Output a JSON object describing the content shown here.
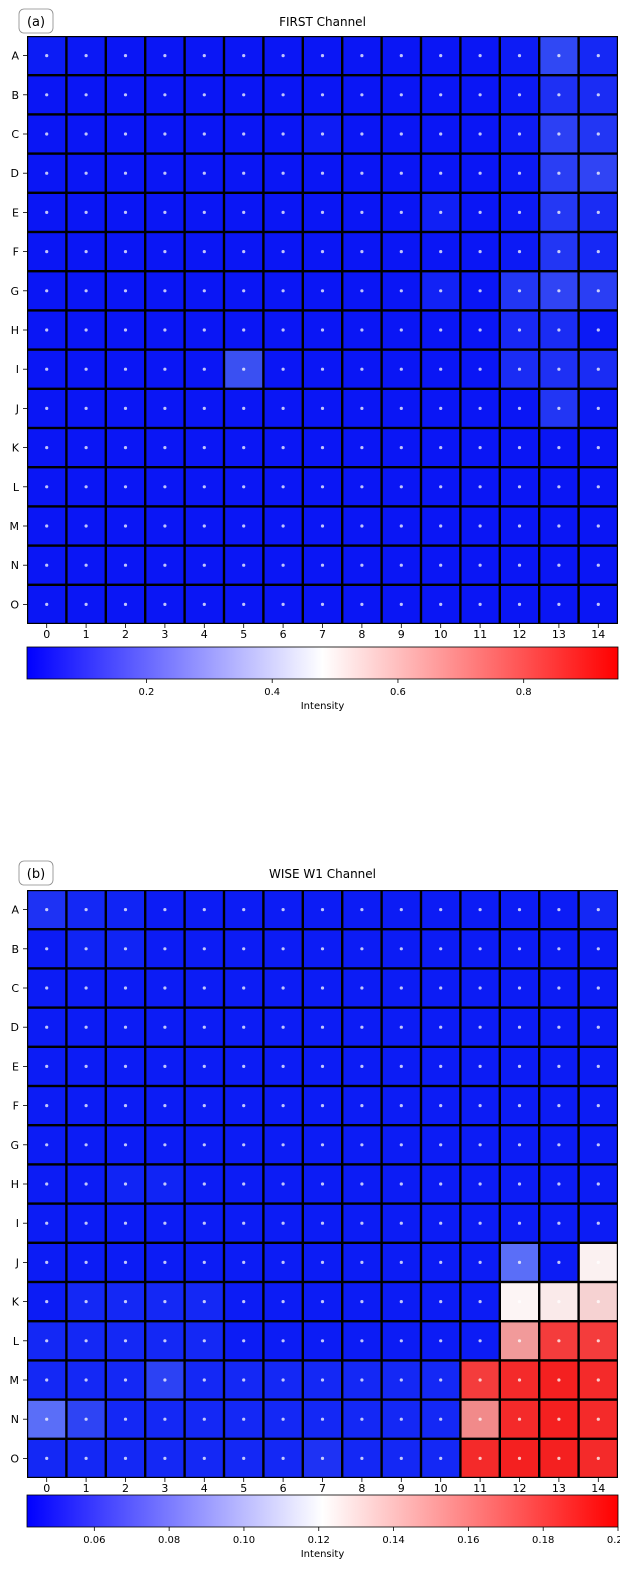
{
  "chart_data": [
    {
      "type": "heatmap",
      "panel_label": "(a)",
      "title": "FIRST Channel",
      "row_labels": [
        "A",
        "B",
        "C",
        "D",
        "E",
        "F",
        "G",
        "H",
        "I",
        "J",
        "K",
        "L",
        "M",
        "N",
        "O"
      ],
      "col_labels": [
        "0",
        "1",
        "2",
        "3",
        "4",
        "5",
        "6",
        "7",
        "8",
        "9",
        "10",
        "11",
        "12",
        "13",
        "14"
      ],
      "cell_colors": [
        [
          "#0c1cf5",
          "#0b18f5",
          "#0a16f5",
          "#0a16f5",
          "#0a16f5",
          "#0a16f5",
          "#0a16f5",
          "#0a16f5",
          "#0a16f5",
          "#0a16f5",
          "#0a16f5",
          "#0a16f5",
          "#0d1cf5",
          "#3048f4",
          "#1528f5"
        ],
        [
          "#0a16f5",
          "#0a16f5",
          "#0a16f5",
          "#0a16f5",
          "#0a16f5",
          "#0a16f5",
          "#0a16f5",
          "#0a16f5",
          "#0a16f5",
          "#0a16f5",
          "#0a16f5",
          "#0a16f5",
          "#0c1af5",
          "#1e30f4",
          "#1a2cf4"
        ],
        [
          "#0a16f5",
          "#0a16f5",
          "#0a16f5",
          "#0a16f5",
          "#0a16f5",
          "#0a16f5",
          "#0a16f5",
          "#0e1cf5",
          "#0a16f5",
          "#0a16f5",
          "#0a16f5",
          "#0a16f5",
          "#0e1cf5",
          "#2c40f4",
          "#2236f4"
        ],
        [
          "#0a16f5",
          "#0a16f5",
          "#0a16f5",
          "#0a16f5",
          "#0a16f5",
          "#0a16f5",
          "#0a16f5",
          "#0a16f5",
          "#0a16f5",
          "#0a16f5",
          "#0a16f5",
          "#0a16f5",
          "#0c1af5",
          "#2a3ef4",
          "#3044f4"
        ],
        [
          "#0a16f5",
          "#0a16f5",
          "#0a16f5",
          "#0a16f5",
          "#0a16f5",
          "#0a16f5",
          "#0a16f5",
          "#0a16f5",
          "#0a16f5",
          "#0a16f5",
          "#1020f5",
          "#0a16f5",
          "#0c1af5",
          "#2438f4",
          "#1a2cf4"
        ],
        [
          "#0a16f5",
          "#0a16f5",
          "#0a16f5",
          "#0a16f5",
          "#0a16f5",
          "#0a16f5",
          "#0a16f5",
          "#0a16f5",
          "#0a16f5",
          "#0a16f5",
          "#0a16f5",
          "#0a16f5",
          "#0c1af5",
          "#2236f4",
          "#1628f5"
        ],
        [
          "#0a16f5",
          "#0a16f5",
          "#0a16f5",
          "#0a16f5",
          "#0a16f5",
          "#0a16f5",
          "#0a16f5",
          "#0a16f5",
          "#0a16f5",
          "#0a16f5",
          "#1222f5",
          "#0a16f5",
          "#2236f4",
          "#3044f4",
          "#2a3ef4"
        ],
        [
          "#0a16f5",
          "#0a16f5",
          "#0a16f5",
          "#0a16f5",
          "#0a16f5",
          "#0a16f5",
          "#0a16f5",
          "#0a16f5",
          "#0a16f5",
          "#0a16f5",
          "#0a16f5",
          "#0a16f5",
          "#1828f5",
          "#1a2cf4",
          "#0c1af5"
        ],
        [
          "#0a16f5",
          "#0a16f5",
          "#0a16f5",
          "#0a16f5",
          "#0a16f5",
          "#3a50f2",
          "#0a16f5",
          "#0a16f5",
          "#0a16f5",
          "#0a16f5",
          "#0a16f5",
          "#0a16f5",
          "#1a2cf4",
          "#1e30f4",
          "#1a2cf4"
        ],
        [
          "#0a16f5",
          "#0a16f5",
          "#0a16f5",
          "#0a16f5",
          "#0a16f5",
          "#0a16f5",
          "#0a16f5",
          "#0a16f5",
          "#0a16f5",
          "#0a16f5",
          "#0a16f5",
          "#0a16f5",
          "#0a16f5",
          "#2236f4",
          "#0c1af5"
        ],
        [
          "#0a16f5",
          "#0a16f5",
          "#0a16f5",
          "#0a16f5",
          "#0a16f5",
          "#0a16f5",
          "#0a16f5",
          "#0a16f5",
          "#0a16f5",
          "#0a16f5",
          "#0a16f5",
          "#0a16f5",
          "#0a16f5",
          "#0a16f5",
          "#0a16f5"
        ],
        [
          "#0a16f5",
          "#0a16f5",
          "#0a16f5",
          "#0a16f5",
          "#0a16f5",
          "#0a16f5",
          "#0a16f5",
          "#0a16f5",
          "#0a16f5",
          "#0a16f5",
          "#0a16f5",
          "#0a16f5",
          "#0a16f5",
          "#0a16f5",
          "#0a16f5"
        ],
        [
          "#0a16f5",
          "#0a16f5",
          "#0a16f5",
          "#0a16f5",
          "#0a16f5",
          "#0a16f5",
          "#0a16f5",
          "#0a16f5",
          "#0a16f5",
          "#0a16f5",
          "#0a16f5",
          "#0a16f5",
          "#0a16f5",
          "#0a16f5",
          "#0a16f5"
        ],
        [
          "#0a16f5",
          "#0a16f5",
          "#0a16f5",
          "#0a16f5",
          "#0a16f5",
          "#0a16f5",
          "#0a16f5",
          "#0a16f5",
          "#0a16f5",
          "#0a16f5",
          "#0a16f5",
          "#0a16f5",
          "#0a16f5",
          "#0a16f5",
          "#0a16f5"
        ],
        [
          "#0a16f5",
          "#0a16f5",
          "#0a16f5",
          "#0a16f5",
          "#0a16f5",
          "#0a16f5",
          "#0a16f5",
          "#0a16f5",
          "#0a16f5",
          "#0a16f5",
          "#0a16f5",
          "#0a16f5",
          "#0a16f5",
          "#0a16f5",
          "#0a16f5"
        ]
      ],
      "colorbar": {
        "label": "Intensity",
        "range": [
          0.01,
          0.95
        ],
        "ticks": [
          "0.2",
          "0.4",
          "0.6",
          "0.8"
        ],
        "tick_values": [
          0.2,
          0.4,
          0.6,
          0.8
        ],
        "cmap": [
          "#0000ff",
          "#ffffff",
          "#ff0000"
        ]
      }
    },
    {
      "type": "heatmap",
      "panel_label": "(b)",
      "title": "WISE W1 Channel",
      "row_labels": [
        "A",
        "B",
        "C",
        "D",
        "E",
        "F",
        "G",
        "H",
        "I",
        "J",
        "K",
        "L",
        "M",
        "N",
        "O"
      ],
      "col_labels": [
        "0",
        "1",
        "2",
        "3",
        "4",
        "5",
        "6",
        "7",
        "8",
        "9",
        "10",
        "11",
        "12",
        "13",
        "14"
      ],
      "cell_colors": [
        [
          "#1e32f4",
          "#1428f5",
          "#1024f5",
          "#0c1cf5",
          "#0c1cf5",
          "#0c1cf5",
          "#0c1cf5",
          "#0c1cf5",
          "#0c1cf5",
          "#0c1cf5",
          "#0c1cf5",
          "#0c1cf5",
          "#0c1cf5",
          "#0c1cf5",
          "#1428f5"
        ],
        [
          "#0c1cf5",
          "#1024f5",
          "#1024f5",
          "#0c1cf5",
          "#0c1cf5",
          "#0c1cf5",
          "#0c1cf5",
          "#0c1cf5",
          "#0c1cf5",
          "#0c1cf5",
          "#0c1cf5",
          "#0c1cf5",
          "#0c1cf5",
          "#0c1cf5",
          "#0c1cf5"
        ],
        [
          "#0c1cf5",
          "#0c1cf5",
          "#0c1cf5",
          "#0c1cf5",
          "#0c1cf5",
          "#0c1cf5",
          "#0c1cf5",
          "#0c1cf5",
          "#0c1cf5",
          "#0c1cf5",
          "#0c1cf5",
          "#0c1cf5",
          "#0c1cf5",
          "#0c1cf5",
          "#0c1cf5"
        ],
        [
          "#0c1cf5",
          "#0c1cf5",
          "#0c1cf5",
          "#0c1cf5",
          "#0c1cf5",
          "#0c1cf5",
          "#0c1cf5",
          "#0c1cf5",
          "#0c1cf5",
          "#0c1cf5",
          "#0c1cf5",
          "#0c1cf5",
          "#0c1cf5",
          "#0c1cf5",
          "#0c1cf5"
        ],
        [
          "#0c1cf5",
          "#0c1cf5",
          "#0c1cf5",
          "#0c1cf5",
          "#0c1cf5",
          "#0c1cf5",
          "#0c1cf5",
          "#0c1cf5",
          "#0c1cf5",
          "#0c1cf5",
          "#0c1cf5",
          "#0c1cf5",
          "#0c1cf5",
          "#0c1cf5",
          "#0c1cf5"
        ],
        [
          "#0c1cf5",
          "#0c1cf5",
          "#0c1cf5",
          "#0c1cf5",
          "#0c1cf5",
          "#0c1cf5",
          "#0c1cf5",
          "#0c1cf5",
          "#0c1cf5",
          "#0c1cf5",
          "#0c1cf5",
          "#0c1cf5",
          "#0c1cf5",
          "#0c1cf5",
          "#0c1cf5"
        ],
        [
          "#0c1cf5",
          "#0c1cf5",
          "#0c1cf5",
          "#0c1cf5",
          "#0c1cf5",
          "#0c1cf5",
          "#0c1cf5",
          "#0c1cf5",
          "#0c1cf5",
          "#0c1cf5",
          "#0c1cf5",
          "#0c1cf5",
          "#0c1cf5",
          "#0c1cf5",
          "#0c1cf5"
        ],
        [
          "#0c1cf5",
          "#0c1cf5",
          "#1024f5",
          "#1024f5",
          "#0c1cf5",
          "#0c1cf5",
          "#0c1cf5",
          "#0c1cf5",
          "#0c1cf5",
          "#0c1cf5",
          "#0c1cf5",
          "#0c1cf5",
          "#0c1cf5",
          "#0c1cf5",
          "#0c1cf5"
        ],
        [
          "#0c1cf5",
          "#0c1cf5",
          "#0c1cf5",
          "#0c1cf5",
          "#0c1cf5",
          "#0c1cf5",
          "#0c1cf5",
          "#0c1cf5",
          "#0c1cf5",
          "#0c1cf5",
          "#0c1cf5",
          "#0c1cf5",
          "#0c1cf5",
          "#0c1cf5",
          "#0c1cf5"
        ],
        [
          "#0c1cf5",
          "#0c1cf5",
          "#0c1cf5",
          "#0c1cf5",
          "#0c1cf5",
          "#0c1cf5",
          "#0c1cf5",
          "#0c1cf5",
          "#0c1cf5",
          "#0c1cf5",
          "#0c1cf5",
          "#0c1cf5",
          "#5a6ef8",
          "#0c1cf5",
          "#fbf1f1"
        ],
        [
          "#0c1cf5",
          "#1428f5",
          "#1428f5",
          "#1428f5",
          "#1428f5",
          "#0c1cf5",
          "#0c1cf5",
          "#0c1cf5",
          "#0c1cf5",
          "#0c1cf5",
          "#0c1cf5",
          "#0c1cf5",
          "#fdf5f5",
          "#faeaea",
          "#f6d2d2"
        ],
        [
          "#1428f5",
          "#1428f5",
          "#1428f5",
          "#1428f5",
          "#1428f5",
          "#0c1cf5",
          "#0c1cf5",
          "#0c1cf5",
          "#0c1cf5",
          "#0c1cf5",
          "#0c1cf5",
          "#0c1cf5",
          "#f19a9a",
          "#f43c3c",
          "#f43c3c"
        ],
        [
          "#1428f5",
          "#1428f5",
          "#1428f5",
          "#2c42f4",
          "#1428f5",
          "#1428f5",
          "#1428f5",
          "#1428f5",
          "#1428f5",
          "#1428f5",
          "#1428f5",
          "#f43c3c",
          "#f42a2a",
          "#f42020",
          "#f42a2a"
        ],
        [
          "#5a6ef8",
          "#2e44f4",
          "#1428f5",
          "#1428f5",
          "#1428f5",
          "#1428f5",
          "#1428f5",
          "#1428f5",
          "#1428f5",
          "#1428f5",
          "#1428f5",
          "#f18a8a",
          "#f42a2a",
          "#f42020",
          "#f42a2a"
        ],
        [
          "#1428f5",
          "#1428f5",
          "#1428f5",
          "#1428f5",
          "#1428f5",
          "#1428f5",
          "#1428f5",
          "#1e32f4",
          "#1428f5",
          "#1428f5",
          "#1428f5",
          "#f42a2a",
          "#f42020",
          "#f42020",
          "#f42a2a"
        ]
      ],
      "colorbar": {
        "label": "Intensity",
        "range": [
          0.042,
          0.2
        ],
        "ticks": [
          "0.06",
          "0.08",
          "0.10",
          "0.12",
          "0.14",
          "0.16",
          "0.18",
          "0.20"
        ],
        "tick_values": [
          0.06,
          0.08,
          0.1,
          0.12,
          0.14,
          0.16,
          0.18,
          0.2
        ],
        "cmap": [
          "#0000ff",
          "#ffffff",
          "#ff0000"
        ]
      }
    }
  ]
}
